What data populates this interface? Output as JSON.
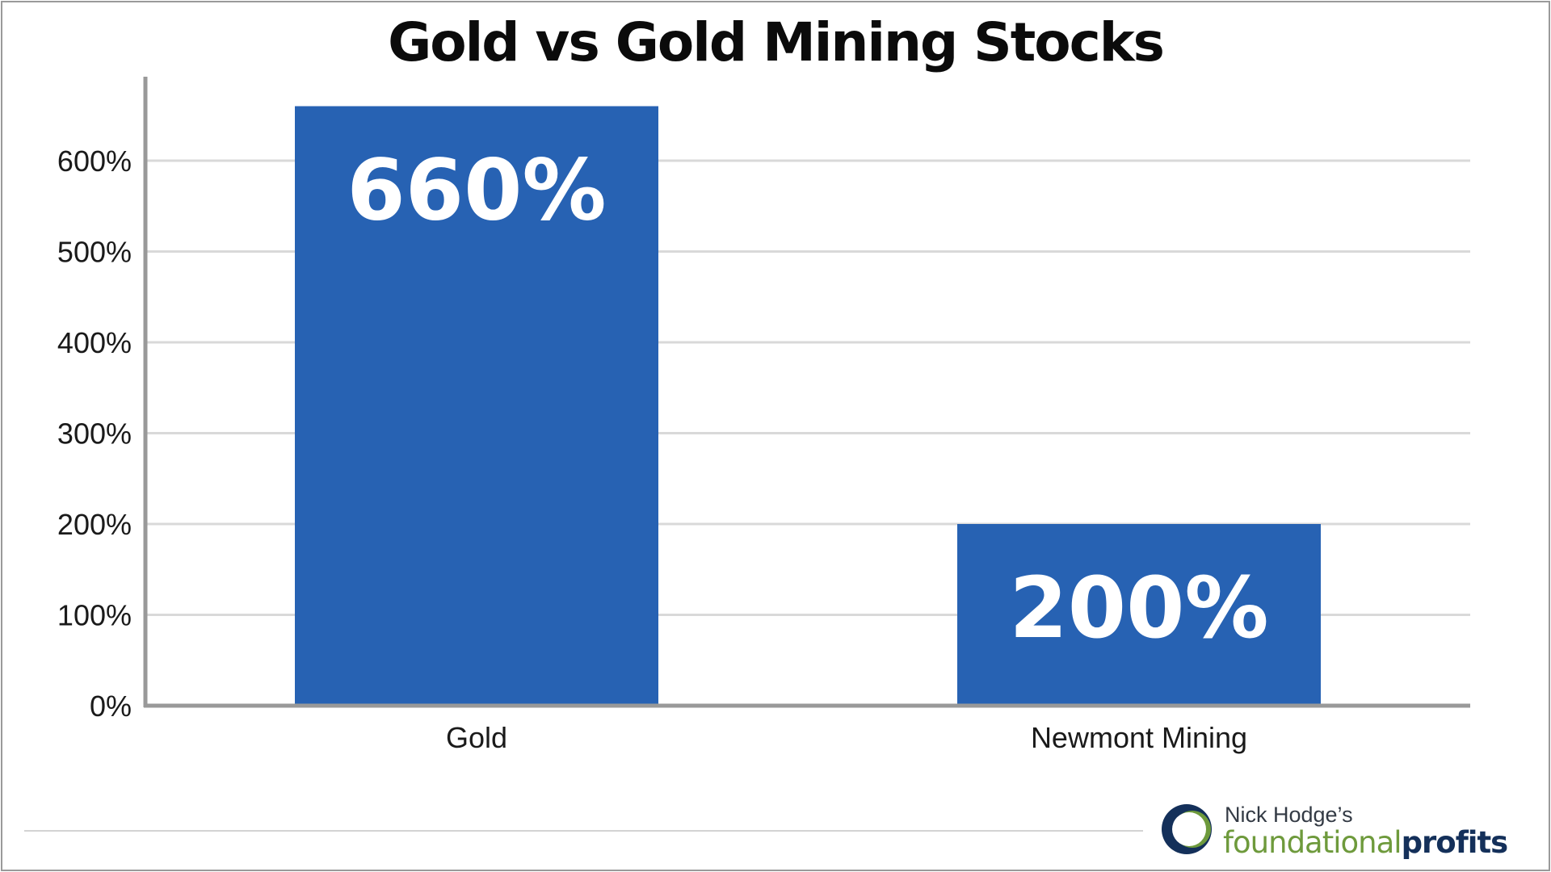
{
  "chart_data": {
    "type": "bar",
    "title": "Gold vs Gold Mining Stocks",
    "categories": [
      "Gold",
      "Newmont Mining"
    ],
    "values": [
      660,
      200
    ],
    "data_labels": [
      "660%",
      "200%"
    ],
    "y_ticks": [
      "0%",
      "100%",
      "200%",
      "300%",
      "400%",
      "500%",
      "600%"
    ],
    "ylim": [
      0,
      690
    ],
    "grid": true,
    "legend": "none",
    "colors": {
      "bar": "#2762b3",
      "grid": "#d9d9d9",
      "axis": "#999999"
    }
  },
  "branding": {
    "byline": "Nick Hodge’s",
    "word_light": "foundational",
    "word_bold": "profits",
    "logo_icon": "crescent-logo-icon"
  }
}
